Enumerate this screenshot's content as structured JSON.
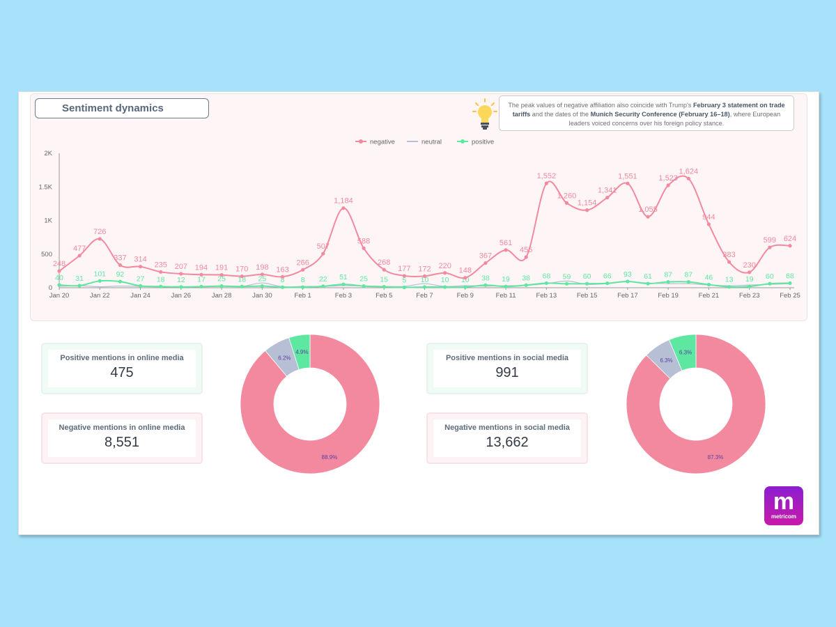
{
  "title": "Sentiment dynamics",
  "note": {
    "text_1": "The peak values of negative affiliation also coincide with Trump's ",
    "bold_1": "February 3 statement on trade tariffs",
    "text_2": " and the dates of the ",
    "bold_2": "Munich Security Conference (February 16–18)",
    "text_3": ", where European leaders voiced concerns over his foreign policy stance."
  },
  "cards": {
    "online_positive_label": "Positive mentions in online media",
    "online_positive_value": "475",
    "online_negative_label": "Negative mentions in online media",
    "online_negative_value": "8,551",
    "social_positive_label": "Positive mentions in social media",
    "social_positive_value": "991",
    "social_negative_label": "Negative mentions in social media",
    "social_negative_value": "13,662"
  },
  "logo": {
    "letter": "m",
    "word": "metricom"
  },
  "colors": {
    "negative": "#f3899e",
    "neutral": "#b6bfd3",
    "positive": "#5de7a0",
    "axis": "#666666"
  },
  "chart_data": [
    {
      "type": "line",
      "legend_position": "top-center",
      "grid": false,
      "ylim": [
        0,
        2000
      ],
      "yticks": [
        "0",
        "500",
        "1K",
        "1.5K",
        "2K"
      ],
      "xtick_labels": [
        "Jan 20",
        "Jan 22",
        "Jan 24",
        "Jan 26",
        "Jan 28",
        "Jan 30",
        "Feb 1",
        "Feb 3",
        "Feb 5",
        "Feb 7",
        "Feb 9",
        "Feb 11",
        "Feb 13",
        "Feb 15",
        "Feb 17",
        "Feb 19",
        "Feb 21",
        "Feb 23",
        "Feb 25"
      ],
      "x": [
        "Jan 20",
        "Jan 21",
        "Jan 22",
        "Jan 23",
        "Jan 24",
        "Jan 25",
        "Jan 26",
        "Jan 27",
        "Jan 28",
        "Jan 29",
        "Jan 30",
        "Jan 31",
        "Feb 1",
        "Feb 2",
        "Feb 3",
        "Feb 4",
        "Feb 5",
        "Feb 6",
        "Feb 7",
        "Feb 8",
        "Feb 9",
        "Feb 10",
        "Feb 11",
        "Feb 12",
        "Feb 13",
        "Feb 14",
        "Feb 15",
        "Feb 16",
        "Feb 17",
        "Feb 18",
        "Feb 19",
        "Feb 20",
        "Feb 21",
        "Feb 22",
        "Feb 23",
        "Feb 24",
        "Feb 25"
      ],
      "series": [
        {
          "name": "negative",
          "values": [
            248,
            477,
            726,
            337,
            314,
            235,
            207,
            194,
            191,
            170,
            198,
            163,
            266,
            507,
            1184,
            588,
            268,
            177,
            172,
            220,
            148,
            367,
            561,
            455,
            1552,
            1260,
            1154,
            1341,
            1551,
            1055,
            1523,
            1624,
            944,
            383,
            230,
            599,
            624
          ],
          "labels": [
            "248",
            "477",
            "726",
            "337",
            "314",
            "235",
            "207",
            "194",
            "191",
            "170",
            "198",
            "163",
            "266",
            "507",
            "1,184",
            "588",
            "268",
            "177",
            "172",
            "220",
            "148",
            "367",
            "561",
            "455",
            "1,552",
            "1,260",
            "1,154",
            "1,341",
            "1,551",
            "1,055",
            "1,523",
            "1,624",
            "944",
            "383",
            "230",
            "599",
            "624"
          ]
        },
        {
          "name": "neutral",
          "values": [
            20,
            30,
            15,
            25,
            20,
            15,
            15,
            15,
            20,
            20,
            70,
            15,
            20,
            20,
            30,
            25,
            20,
            20,
            60,
            20,
            30,
            25,
            30,
            35,
            60,
            100,
            50,
            60,
            90,
            70,
            60,
            60,
            40,
            30,
            40,
            50,
            60
          ]
        },
        {
          "name": "positive",
          "values": [
            40,
            31,
            101,
            92,
            27,
            18,
            12,
            17,
            25,
            18,
            25,
            8,
            8,
            22,
            51,
            25,
            15,
            5,
            10,
            10,
            10,
            38,
            19,
            38,
            68,
            59,
            60,
            66,
            93,
            61,
            87,
            87,
            46,
            13,
            19,
            60,
            68
          ],
          "labels": [
            "40",
            "31",
            "101",
            "92",
            "27",
            "18",
            "12",
            "17",
            "25",
            "18",
            "25",
            "8",
            "8",
            "22",
            "51",
            "25",
            "15",
            "5",
            "10",
            "10",
            "10",
            "38",
            "19",
            "38",
            "68",
            "59",
            "60",
            "66",
            "93",
            "61",
            "87",
            "87",
            "46",
            "13",
            "19",
            "60",
            "68"
          ]
        }
      ]
    },
    {
      "type": "pie",
      "title": "",
      "labels": [
        "negative",
        "neutral",
        "positive"
      ],
      "values": [
        88.9,
        6.2,
        4.9
      ],
      "value_labels": [
        "88.9%",
        "6.2%",
        "4.9%"
      ]
    },
    {
      "type": "pie",
      "title": "",
      "labels": [
        "negative",
        "neutral",
        "positive"
      ],
      "values": [
        87.3,
        6.3,
        6.3
      ],
      "value_labels": [
        "87.3%",
        "6.3%",
        "6.3%"
      ]
    }
  ]
}
